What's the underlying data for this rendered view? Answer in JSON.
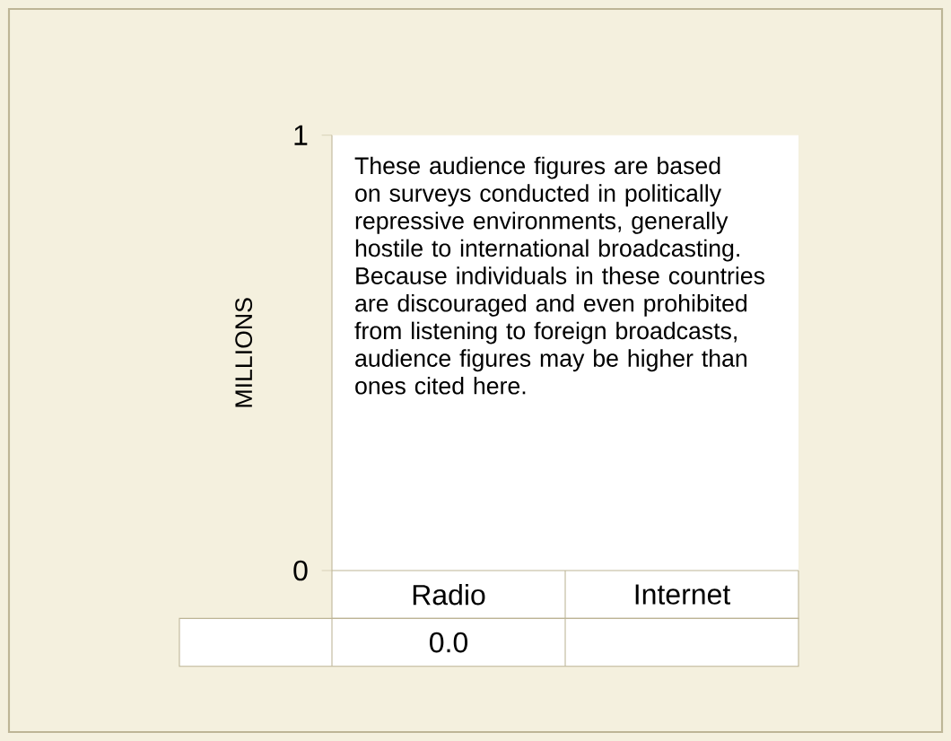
{
  "chart_data": {
    "type": "bar",
    "ylabel": "MILLIONS",
    "categories": [
      "Radio",
      "Internet"
    ],
    "series": [
      {
        "values": [
          0.0,
          null
        ],
        "value_labels": [
          "0.0",
          null
        ]
      }
    ],
    "ylim": [
      0,
      1
    ],
    "yticks": [
      0,
      1
    ],
    "annotations": [
      "These audience figures are based on surveys conducted in politically repressive environments, generally hostile to international broadcasting. Because individuals in these countries are discouraged and even prohibited from listening to foreign broadcasts, audience figures may be higher than ones cited here."
    ]
  }
}
